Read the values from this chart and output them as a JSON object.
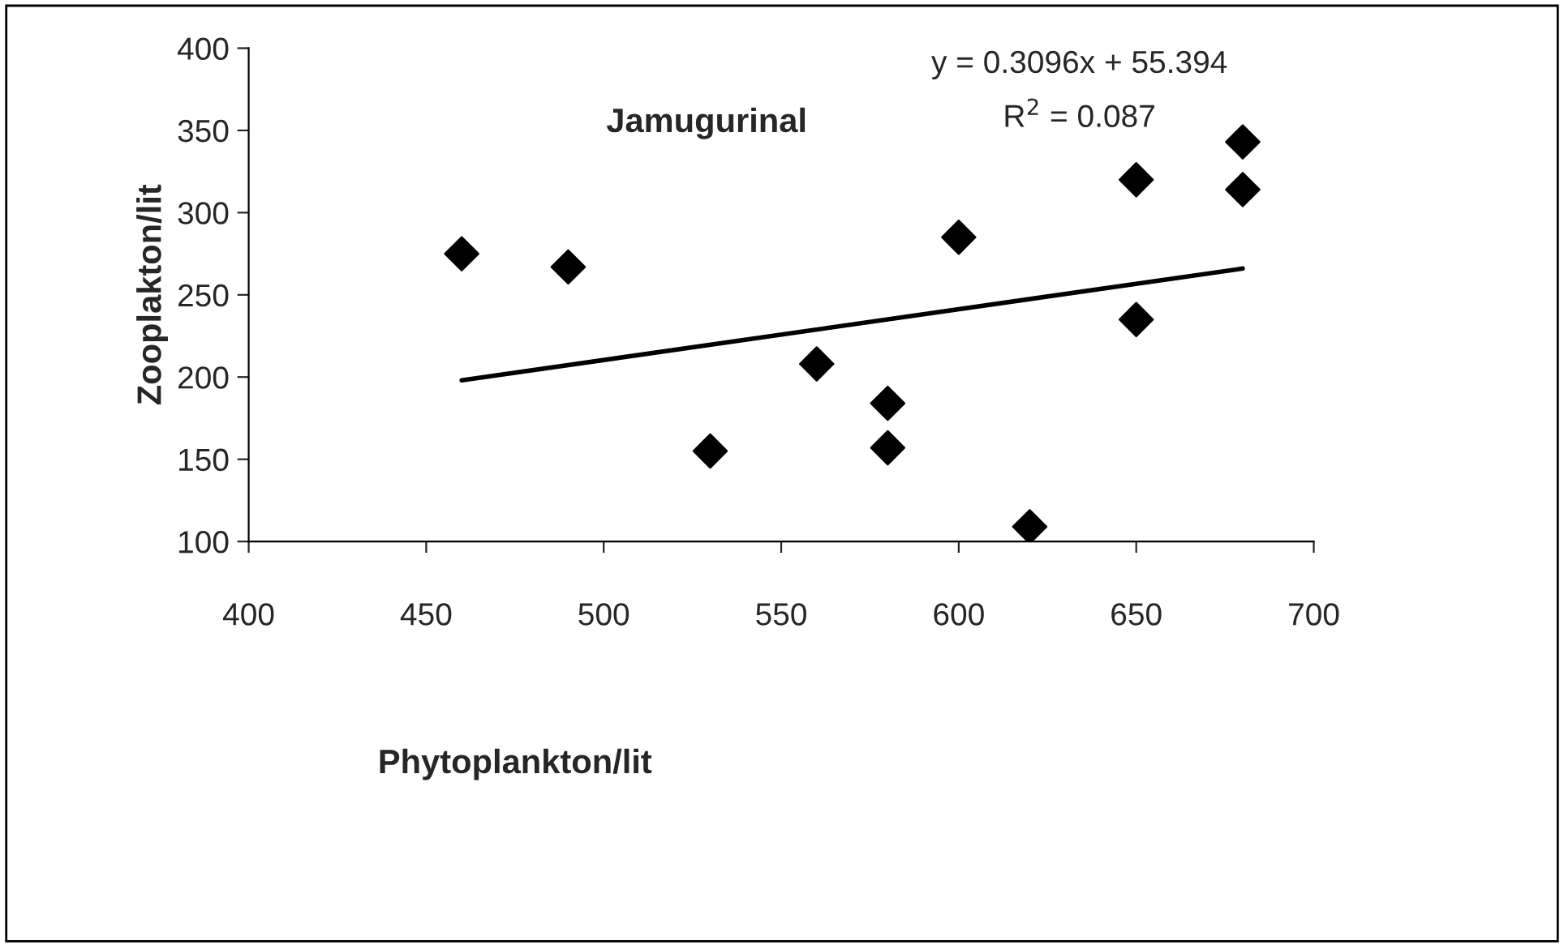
{
  "chart_data": {
    "type": "scatter",
    "title": "Jamugurinal",
    "xlabel": "Phytoplankton/lit",
    "ylabel": "Zooplakton/lit",
    "annotations": [
      "y = 0.3096x + 55.394",
      "R$^{2}$ = 0.087"
    ],
    "grid": false,
    "legend": false,
    "xlim": [
      400,
      700
    ],
    "xticks": [
      400,
      450,
      500,
      550,
      600,
      650,
      700
    ],
    "ylim": [
      100,
      400
    ],
    "yticks": [
      100,
      150,
      200,
      250,
      300,
      350,
      400
    ],
    "series": [
      {
        "marker": "diamond",
        "color": "#000000",
        "x": [
          460,
          490,
          530,
          560,
          580,
          580,
          600,
          620,
          650,
          650,
          680,
          680
        ],
        "values": [
          275,
          267,
          155,
          208,
          184,
          157,
          285,
          109,
          320,
          235,
          343,
          314
        ]
      },
      {
        "type": "line",
        "marker": "none",
        "color": "#000000",
        "x": [
          460,
          680
        ],
        "values": [
          198,
          266
        ]
      }
    ]
  }
}
